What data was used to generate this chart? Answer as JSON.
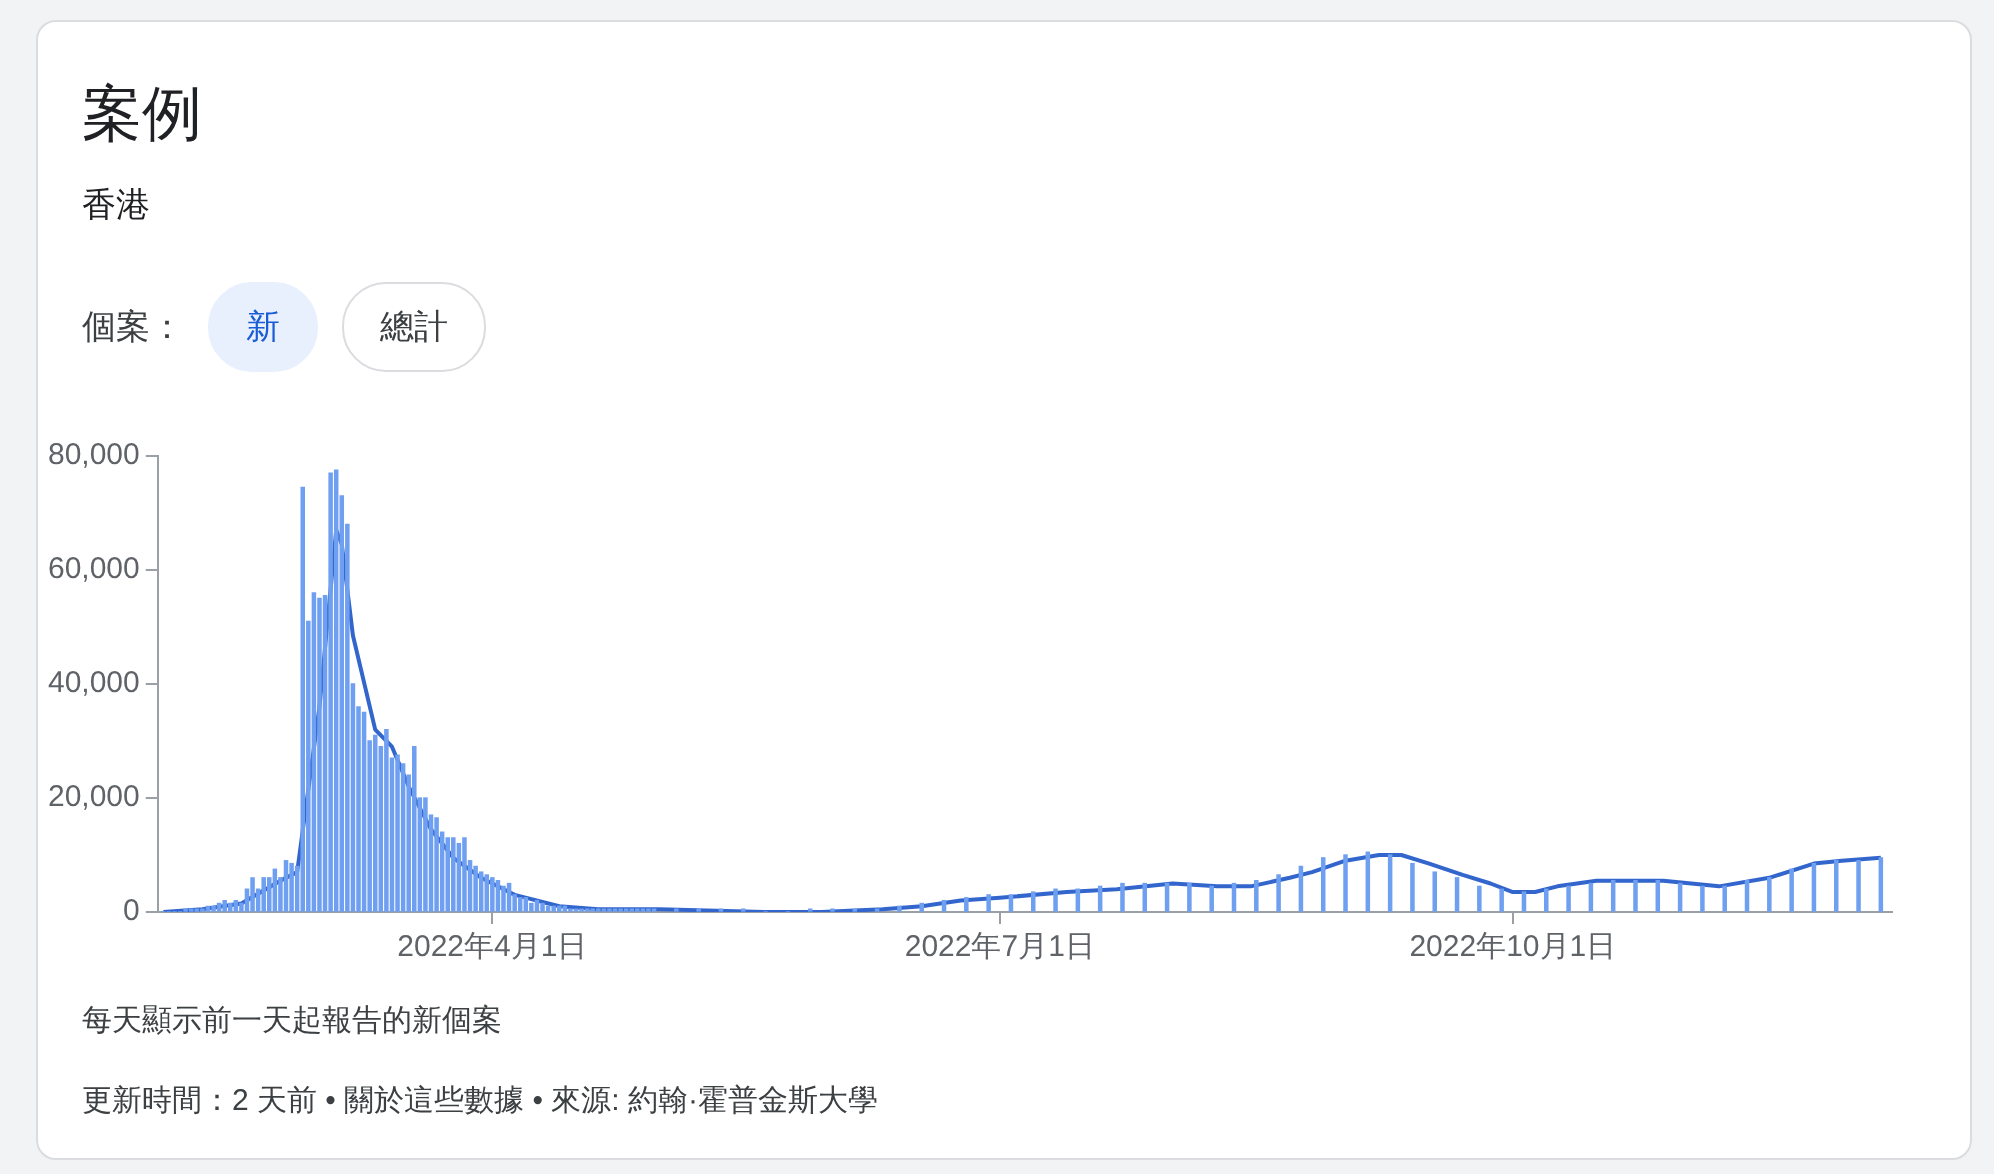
{
  "chart_data": {
    "type": "bar",
    "title": "案例",
    "subtitle": "香港",
    "annotations": [
      "個案：",
      "新",
      "總計",
      "每天顯示前一天起報告的新個案",
      "更新時間：2 天前 • 關於這些數據 • 來源: 約翰·霍普金斯大學"
    ],
    "xlim": [
      "2022-01-31",
      "2022-12-08"
    ],
    "xticks": [
      {
        "value": "2022-04-01",
        "label": "2022年4月1日"
      },
      {
        "value": "2022-07-01",
        "label": "2022年7月1日"
      },
      {
        "value": "2022-10-01",
        "label": "2022年10月1日"
      }
    ],
    "ylim": [
      0,
      80000
    ],
    "yticks": [
      {
        "value": 0,
        "label": "0"
      },
      {
        "value": 20000,
        "label": "20,000"
      },
      {
        "value": 40000,
        "label": "40,000"
      },
      {
        "value": 60000,
        "label": "60,000"
      },
      {
        "value": 80000,
        "label": "80,000"
      }
    ],
    "legend": false,
    "marker": "none",
    "line_style": "solid",
    "series": [
      {
        "color": "#6e9ff0",
        "x": [
          "2022-02-01",
          "2022-02-02",
          "2022-02-03",
          "2022-02-04",
          "2022-02-05",
          "2022-02-06",
          "2022-02-07",
          "2022-02-08",
          "2022-02-09",
          "2022-02-10",
          "2022-02-11",
          "2022-02-12",
          "2022-02-13",
          "2022-02-14",
          "2022-02-15",
          "2022-02-16",
          "2022-02-17",
          "2022-02-18",
          "2022-02-19",
          "2022-02-20",
          "2022-02-21",
          "2022-02-22",
          "2022-02-23",
          "2022-02-24",
          "2022-02-25",
          "2022-02-26",
          "2022-02-27",
          "2022-02-28",
          "2022-03-01",
          "2022-03-02",
          "2022-03-03",
          "2022-03-04",
          "2022-03-05",
          "2022-03-06",
          "2022-03-07",
          "2022-03-08",
          "2022-03-09",
          "2022-03-10",
          "2022-03-11",
          "2022-03-12",
          "2022-03-13",
          "2022-03-14",
          "2022-03-15",
          "2022-03-16",
          "2022-03-17",
          "2022-03-18",
          "2022-03-19",
          "2022-03-20",
          "2022-03-21",
          "2022-03-22",
          "2022-03-23",
          "2022-03-24",
          "2022-03-25",
          "2022-03-26",
          "2022-03-27",
          "2022-03-28",
          "2022-03-29",
          "2022-03-30",
          "2022-03-31",
          "2022-04-01",
          "2022-04-02",
          "2022-04-03",
          "2022-04-04",
          "2022-04-05",
          "2022-04-06",
          "2022-04-07",
          "2022-04-08",
          "2022-04-09",
          "2022-04-10",
          "2022-04-11",
          "2022-04-12",
          "2022-04-13",
          "2022-04-14",
          "2022-04-15",
          "2022-04-16",
          "2022-04-17",
          "2022-04-18",
          "2022-04-19",
          "2022-04-20",
          "2022-04-21",
          "2022-04-22",
          "2022-04-23",
          "2022-04-24",
          "2022-04-25",
          "2022-04-26",
          "2022-04-27",
          "2022-04-28",
          "2022-04-29",
          "2022-04-30",
          "2022-05-04",
          "2022-05-08",
          "2022-05-12",
          "2022-05-16",
          "2022-05-20",
          "2022-05-24",
          "2022-05-28",
          "2022-06-01",
          "2022-06-05",
          "2022-06-09",
          "2022-06-13",
          "2022-06-17",
          "2022-06-21",
          "2022-06-25",
          "2022-06-29",
          "2022-07-03",
          "2022-07-07",
          "2022-07-11",
          "2022-07-15",
          "2022-07-19",
          "2022-07-23",
          "2022-07-27",
          "2022-07-31",
          "2022-08-04",
          "2022-08-08",
          "2022-08-12",
          "2022-08-16",
          "2022-08-20",
          "2022-08-24",
          "2022-08-28",
          "2022-09-01",
          "2022-09-05",
          "2022-09-09",
          "2022-09-13",
          "2022-09-17",
          "2022-09-21",
          "2022-09-25",
          "2022-09-29",
          "2022-10-03",
          "2022-10-07",
          "2022-10-11",
          "2022-10-15",
          "2022-10-19",
          "2022-10-23",
          "2022-10-27",
          "2022-10-31",
          "2022-11-04",
          "2022-11-08",
          "2022-11-12",
          "2022-11-16",
          "2022-11-20",
          "2022-11-24",
          "2022-11-28",
          "2022-12-02",
          "2022-12-06"
        ],
        "values": [
          0,
          0,
          0,
          0,
          500,
          500,
          500,
          500,
          1000,
          1000,
          1500,
          2000,
          1500,
          2000,
          1500,
          4000,
          6000,
          4000,
          6000,
          6000,
          7500,
          6000,
          9000,
          8500,
          8000,
          74500,
          51000,
          56000,
          55000,
          55500,
          77000,
          77500,
          73000,
          68000,
          40000,
          36000,
          35000,
          30000,
          31000,
          29000,
          32000,
          27000,
          27500,
          26000,
          24000,
          29000,
          20000,
          20000,
          17000,
          16500,
          14000,
          13000,
          13000,
          12000,
          13000,
          9000,
          8000,
          7000,
          6500,
          6000,
          5500,
          4500,
          5000,
          3000,
          2500,
          2500,
          1500,
          2000,
          1500,
          1000,
          1000,
          1000,
          1000,
          500,
          500,
          500,
          500,
          500,
          500,
          500,
          500,
          500,
          500,
          500,
          500,
          500,
          500,
          500,
          500,
          500,
          500,
          500,
          500,
          0,
          0,
          500,
          500,
          500,
          500,
          1000,
          1500,
          2000,
          2500,
          3000,
          3000,
          3500,
          4000,
          4000,
          4500,
          5000,
          5000,
          5000,
          5000,
          4500,
          5000,
          5500,
          6500,
          8000,
          9500,
          10000,
          10500,
          10000,
          8500,
          7000,
          6000,
          4500,
          4000,
          3500,
          4000,
          4500,
          5000,
          5500,
          5500,
          5500,
          5000,
          4500,
          4500,
          5500,
          6000,
          7500,
          8500,
          9000,
          9000,
          9500
        ]
      },
      {
        "type": "line",
        "color": "#3366cc",
        "x": [
          "2022-02-01",
          "2022-02-08",
          "2022-02-15",
          "2022-02-22",
          "2022-02-25",
          "2022-03-01",
          "2022-03-04",
          "2022-03-05",
          "2022-03-07",
          "2022-03-11",
          "2022-03-14",
          "2022-03-17",
          "2022-03-21",
          "2022-03-25",
          "2022-03-30",
          "2022-04-05",
          "2022-04-13",
          "2022-04-20",
          "2022-05-01",
          "2022-05-20",
          "2022-05-25",
          "2022-05-30",
          "2022-06-10",
          "2022-06-17",
          "2022-06-24",
          "2022-07-01",
          "2022-07-13",
          "2022-07-22",
          "2022-08-01",
          "2022-08-09",
          "2022-08-15",
          "2022-08-22",
          "2022-08-26",
          "2022-09-01",
          "2022-09-07",
          "2022-09-11",
          "2022-09-16",
          "2022-09-22",
          "2022-09-27",
          "2022-10-01",
          "2022-10-05",
          "2022-10-09",
          "2022-10-16",
          "2022-10-28",
          "2022-11-07",
          "2022-11-16",
          "2022-11-24",
          "2022-11-29",
          "2022-12-06"
        ],
        "values": [
          0,
          500,
          1500,
          5500,
          7000,
          36000,
          67000,
          64500,
          48500,
          32000,
          29000,
          22000,
          14500,
          9500,
          6000,
          3000,
          1000,
          500,
          500,
          0,
          0,
          0,
          500,
          1000,
          2000,
          2500,
          3500,
          4000,
          5000,
          4500,
          4500,
          6000,
          7000,
          9000,
          10000,
          10000,
          8500,
          6500,
          5000,
          3500,
          3500,
          4500,
          5500,
          5500,
          4500,
          6000,
          8500,
          9000,
          9500
        ]
      }
    ]
  }
}
